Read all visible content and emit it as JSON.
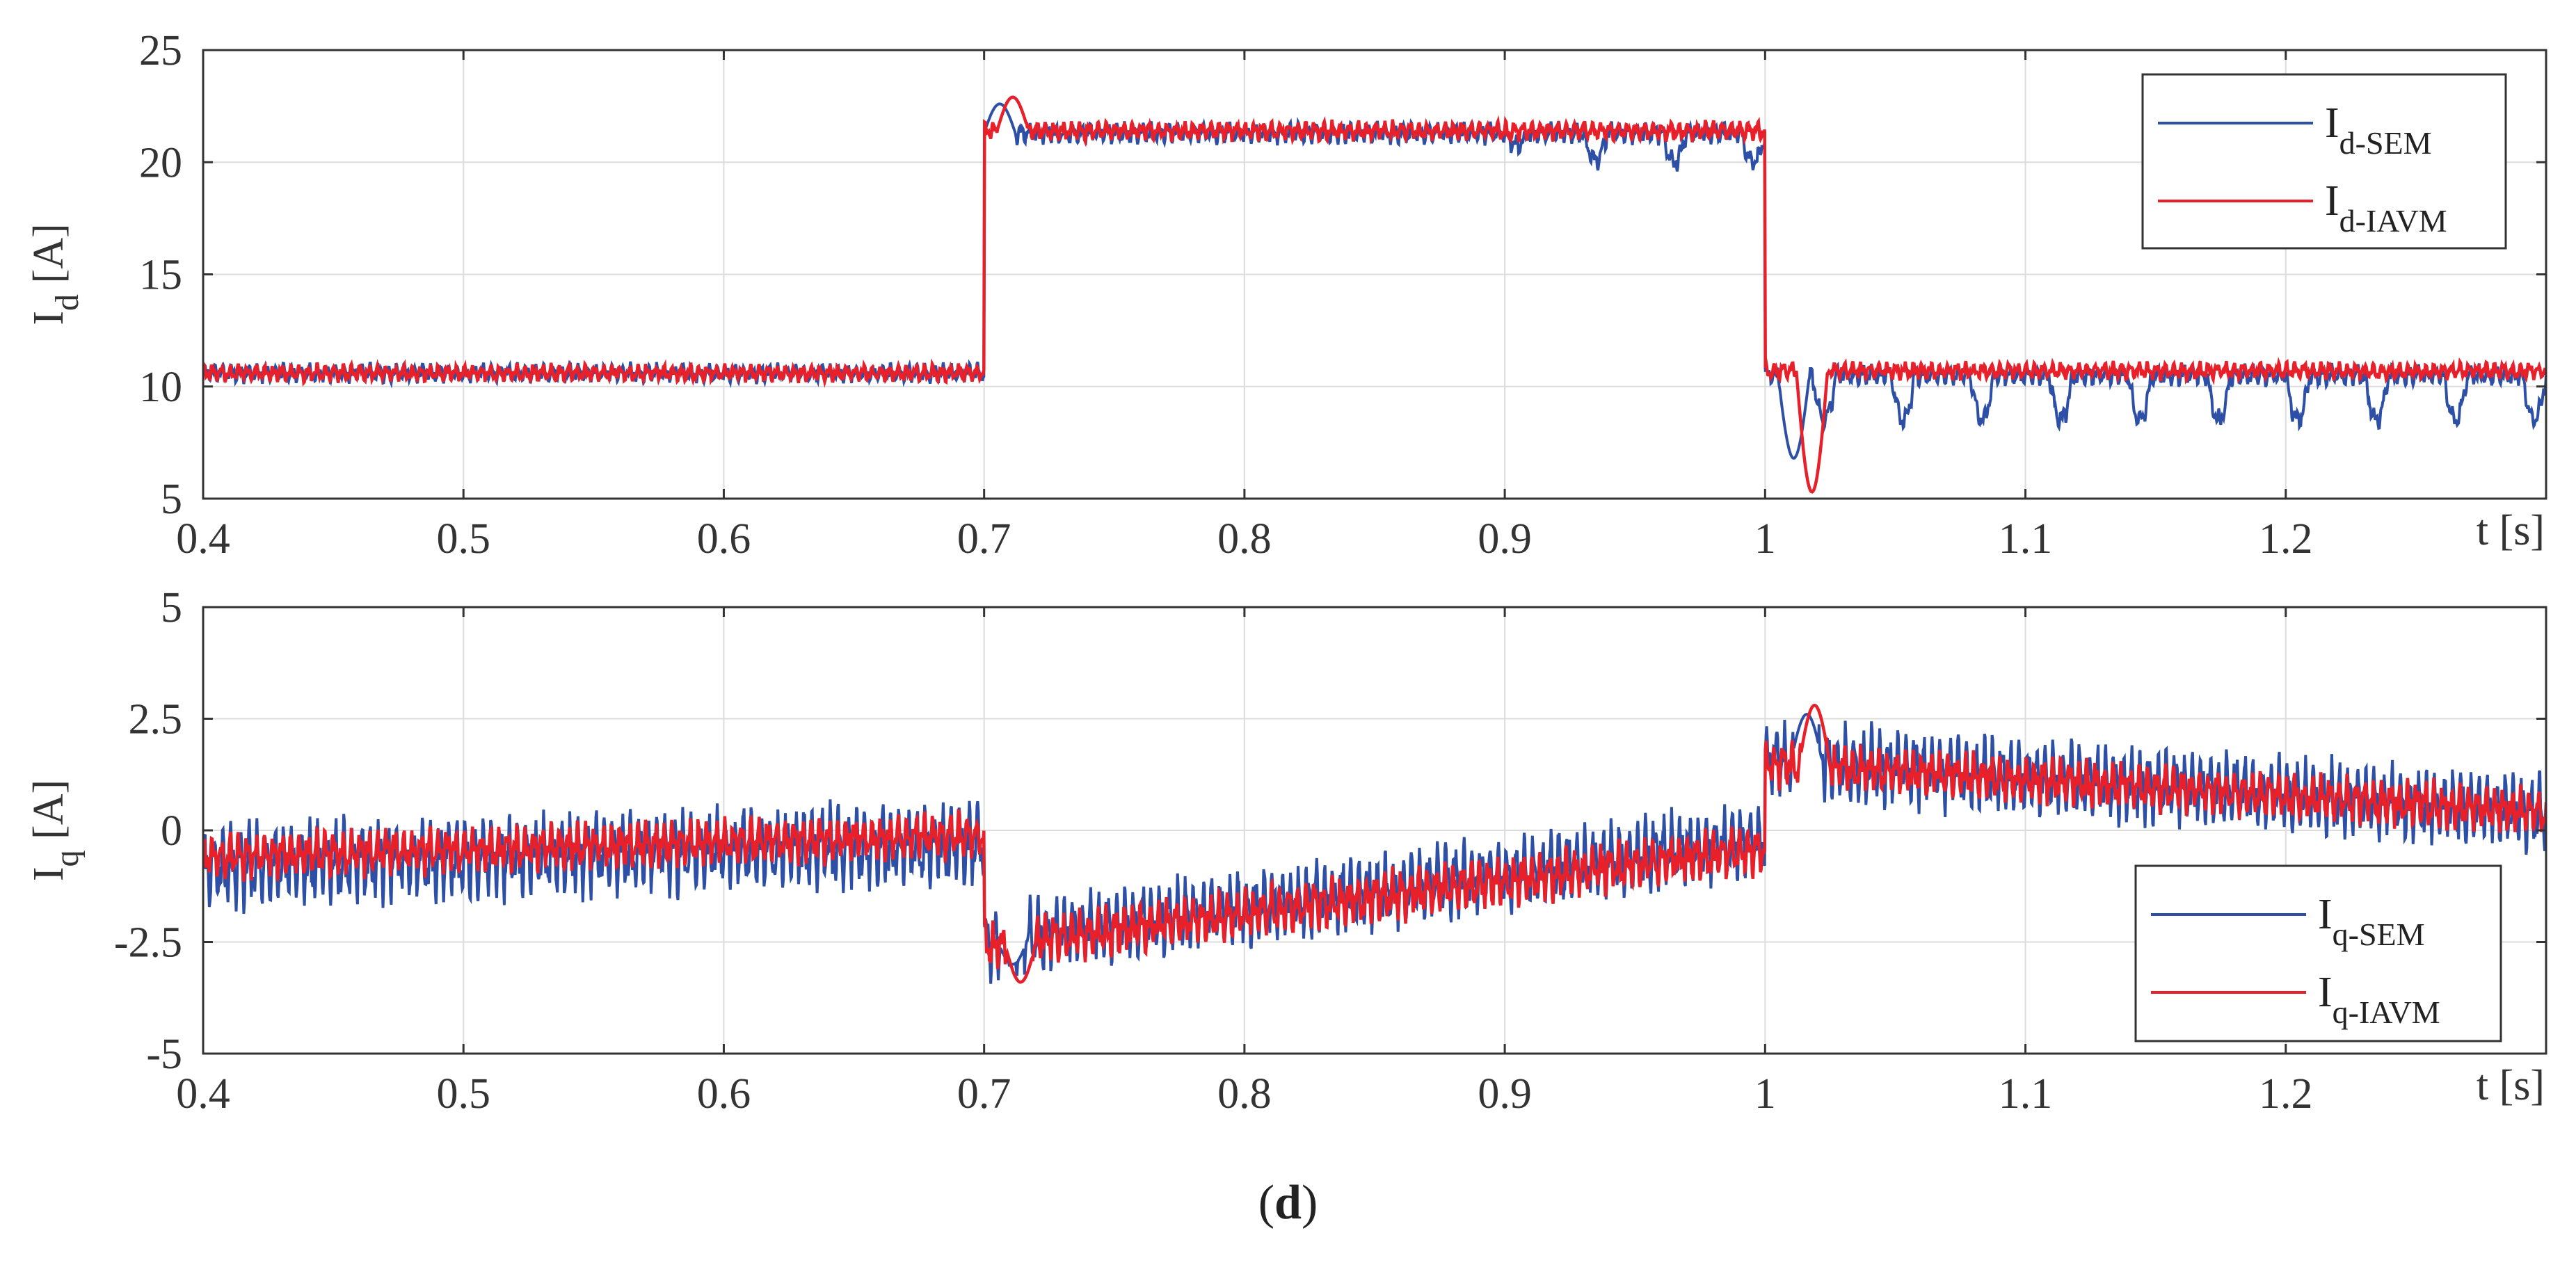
{
  "caption": {
    "open": "(",
    "letter": "d",
    "close": ")"
  },
  "colors": {
    "sem": "#2e4fa6",
    "iavm": "#e8202a",
    "grid": "#dcdcdc",
    "axis": "#333333"
  },
  "chart_data": [
    {
      "type": "line",
      "id": "id_plot",
      "xlim": [
        0.4,
        1.3
      ],
      "ylim": [
        5,
        25
      ],
      "x_ticks": [
        0.4,
        0.5,
        0.6,
        0.7,
        0.8,
        0.9,
        1.0,
        1.1,
        1.2
      ],
      "x_tick_labels": [
        "0.4",
        "0.5",
        "0.6",
        "0.7",
        "0.8",
        "0.9",
        "1",
        "1.1",
        "1.2"
      ],
      "y_ticks": [
        5,
        10,
        15,
        20,
        25
      ],
      "y_tick_labels": [
        "5",
        "10",
        "15",
        "20",
        "25"
      ],
      "xlabel": "t [s]",
      "ylabel": {
        "main": "I",
        "sub": "d",
        "unit": " [A]"
      },
      "grid": true,
      "legend": "top-right",
      "series": [
        {
          "name": {
            "main": "I",
            "sub": "d-SEM"
          },
          "key": "sem",
          "segments": [
            {
              "t0": 0.4,
              "t1": 0.7,
              "mean": 10.6,
              "ripple": 0.45
            },
            {
              "t0": 0.7,
              "t1": 1.0,
              "mean": 21.3,
              "ripple": 0.5,
              "dips": 20.0,
              "dip_start": 0.88
            },
            {
              "t0": 1.0,
              "t1": 1.3,
              "mean": 10.5,
              "ripple": 0.5,
              "dips": 8.5
            }
          ],
          "transitions": [
            {
              "t": 0.7,
              "peak": 22.6
            },
            {
              "t": 1.005,
              "trough": 6.8
            }
          ]
        },
        {
          "name": {
            "main": "I",
            "sub": "d-IAVM"
          },
          "key": "iavm",
          "segments": [
            {
              "t0": 0.4,
              "t1": 0.7,
              "mean": 10.6,
              "ripple": 0.4
            },
            {
              "t0": 0.7,
              "t1": 1.0,
              "mean": 21.4,
              "ripple": 0.45
            },
            {
              "t0": 1.0,
              "t1": 1.3,
              "mean": 10.7,
              "ripple": 0.4
            }
          ],
          "transitions": [
            {
              "t": 0.705,
              "peak": 22.9
            },
            {
              "t": 1.012,
              "trough": 5.3
            }
          ]
        }
      ]
    },
    {
      "type": "line",
      "id": "iq_plot",
      "xlim": [
        0.4,
        1.3
      ],
      "ylim": [
        -5,
        5
      ],
      "x_ticks": [
        0.4,
        0.5,
        0.6,
        0.7,
        0.8,
        0.9,
        1.0,
        1.1,
        1.2
      ],
      "x_tick_labels": [
        "0.4",
        "0.5",
        "0.6",
        "0.7",
        "0.8",
        "0.9",
        "1",
        "1.1",
        "1.2"
      ],
      "y_ticks": [
        -5,
        -2.5,
        0,
        2.5,
        5
      ],
      "y_tick_labels": [
        "-5",
        "-2.5",
        "0",
        "2.5",
        "5"
      ],
      "xlabel": "t [s]",
      "ylabel": {
        "main": "I",
        "sub": "q",
        "unit": " [A]"
      },
      "grid": true,
      "legend": "bottom-right",
      "series": [
        {
          "name": {
            "main": "I",
            "sub": "q-SEM"
          },
          "key": "sem",
          "segments": [
            {
              "t0": 0.4,
              "t1": 0.7,
              "mean_start": -0.8,
              "mean_end": -0.3,
              "ripple": 1.0
            },
            {
              "t0": 0.7,
              "t1": 1.0,
              "mean_start": -2.5,
              "mean_end": -0.2,
              "ripple": 0.9
            },
            {
              "t0": 1.0,
              "t1": 1.3,
              "mean_start": 1.6,
              "mean_end": 0.4,
              "ripple": 0.9
            }
          ],
          "transitions": [
            {
              "t": 0.705,
              "trough": -3.0
            },
            {
              "t": 1.01,
              "peak": 2.6
            }
          ]
        },
        {
          "name": {
            "main": "I",
            "sub": "q-IAVM"
          },
          "key": "iavm",
          "segments": [
            {
              "t0": 0.4,
              "t1": 0.7,
              "mean_start": -0.6,
              "mean_end": -0.1,
              "ripple": 0.55
            },
            {
              "t0": 0.7,
              "t1": 1.0,
              "mean_start": -2.6,
              "mean_end": -0.4,
              "ripple": 0.6
            },
            {
              "t0": 1.0,
              "t1": 1.3,
              "mean_start": 1.5,
              "mean_end": 0.4,
              "ripple": 0.55
            }
          ],
          "transitions": [
            {
              "t": 0.708,
              "trough": -3.4
            },
            {
              "t": 1.013,
              "peak": 2.8
            }
          ]
        }
      ]
    }
  ]
}
